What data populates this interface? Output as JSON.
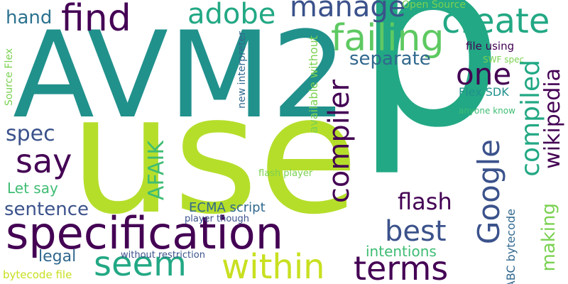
{
  "words": {
    "p": "p",
    "use": "use",
    "avm2": "AVM2",
    "specification": "specification",
    "failing": "failing",
    "within": "within",
    "terms": "terms",
    "seem": "seem",
    "find": "find",
    "adobe": "adobe",
    "manage": "manage",
    "create": "create",
    "one": "one",
    "best": "best",
    "say": "say",
    "spec": "spec",
    "sentence": "sentence",
    "hand": "hand",
    "flash": "flash",
    "separate": "separate",
    "intentions": "intentions",
    "let_say": "Let say",
    "legal": "legal",
    "ecma_script": "ECMA script",
    "flex_sdk": "Flex SDK",
    "file_using": "file using",
    "open_source": "Open Source",
    "swf_spec": "SWF spec",
    "anyone_know": "anyone know",
    "flash_player": "flash player",
    "player_though": "player though",
    "without_restriction": "without restriction",
    "bytecode_file": "bytecode file",
    "compiler": "compiler",
    "compiled": "compiled",
    "wikipedia": "wikipedia",
    "google": "Google",
    "afaik": "AFAIK",
    "making": "making",
    "abc_bytecode": "ABC bytecode",
    "source_flex": "Source Flex",
    "new_interpreter": "new interpreter",
    "available_without": "available without"
  }
}
